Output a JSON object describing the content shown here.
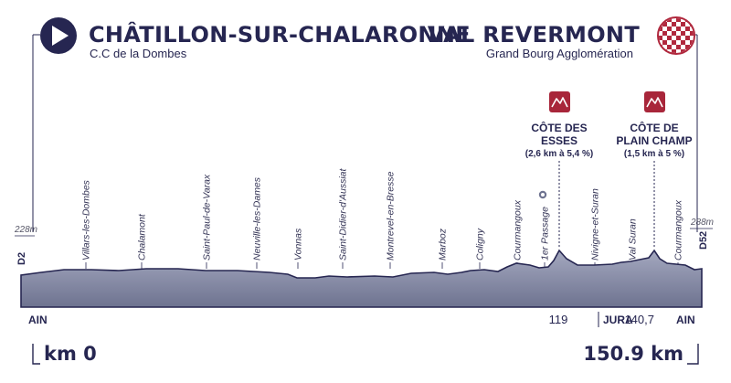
{
  "start": {
    "town": "CHÂTILLON-SUR-CHALARONNE",
    "subtitle": "C.C de la Dombes",
    "altitude": "228m",
    "road": "D2",
    "icon": "play-arrow-icon"
  },
  "finish": {
    "town": "VAL REVERMONT",
    "subtitle": "Grand Bourg Agglomération",
    "altitude": "288m",
    "road": "D52",
    "icon": "checkered-flag-icon"
  },
  "climbs": [
    {
      "line1": "CÔTE DES",
      "line2": "ESSES",
      "detail": "(2,6 km à 5,4 %)",
      "icon": "mountain-icon"
    },
    {
      "line1": "CÔTE DE",
      "line2": "PLAIN CHAMP",
      "detail": "(1,5 km à 5 %)",
      "icon": "mountain-icon"
    }
  ],
  "places": [
    "Villars-les-Dombes",
    "Chalamont",
    "Saint-Paul-de-Varax",
    "Neuville-les-Dames",
    "Vonnas",
    "Saint-Didier-d'Aussiat",
    "Montrevel-en-Bresse",
    "Marboz",
    "Coligny",
    "Courmangoux",
    "1er Passage",
    "Nivigne-et-Suran",
    "Val Suran",
    "Courmangoux"
  ],
  "departments": [
    "AIN",
    "JURA",
    "AIN"
  ],
  "km_marks": [
    "119",
    "140,7"
  ],
  "distance": {
    "start": "km 0",
    "end": "150.9 km"
  },
  "colors": {
    "navy": "#262651",
    "profile_fill": "#8f93ac",
    "climb_icon": "#a8263a",
    "checker": "#b0283d"
  }
}
